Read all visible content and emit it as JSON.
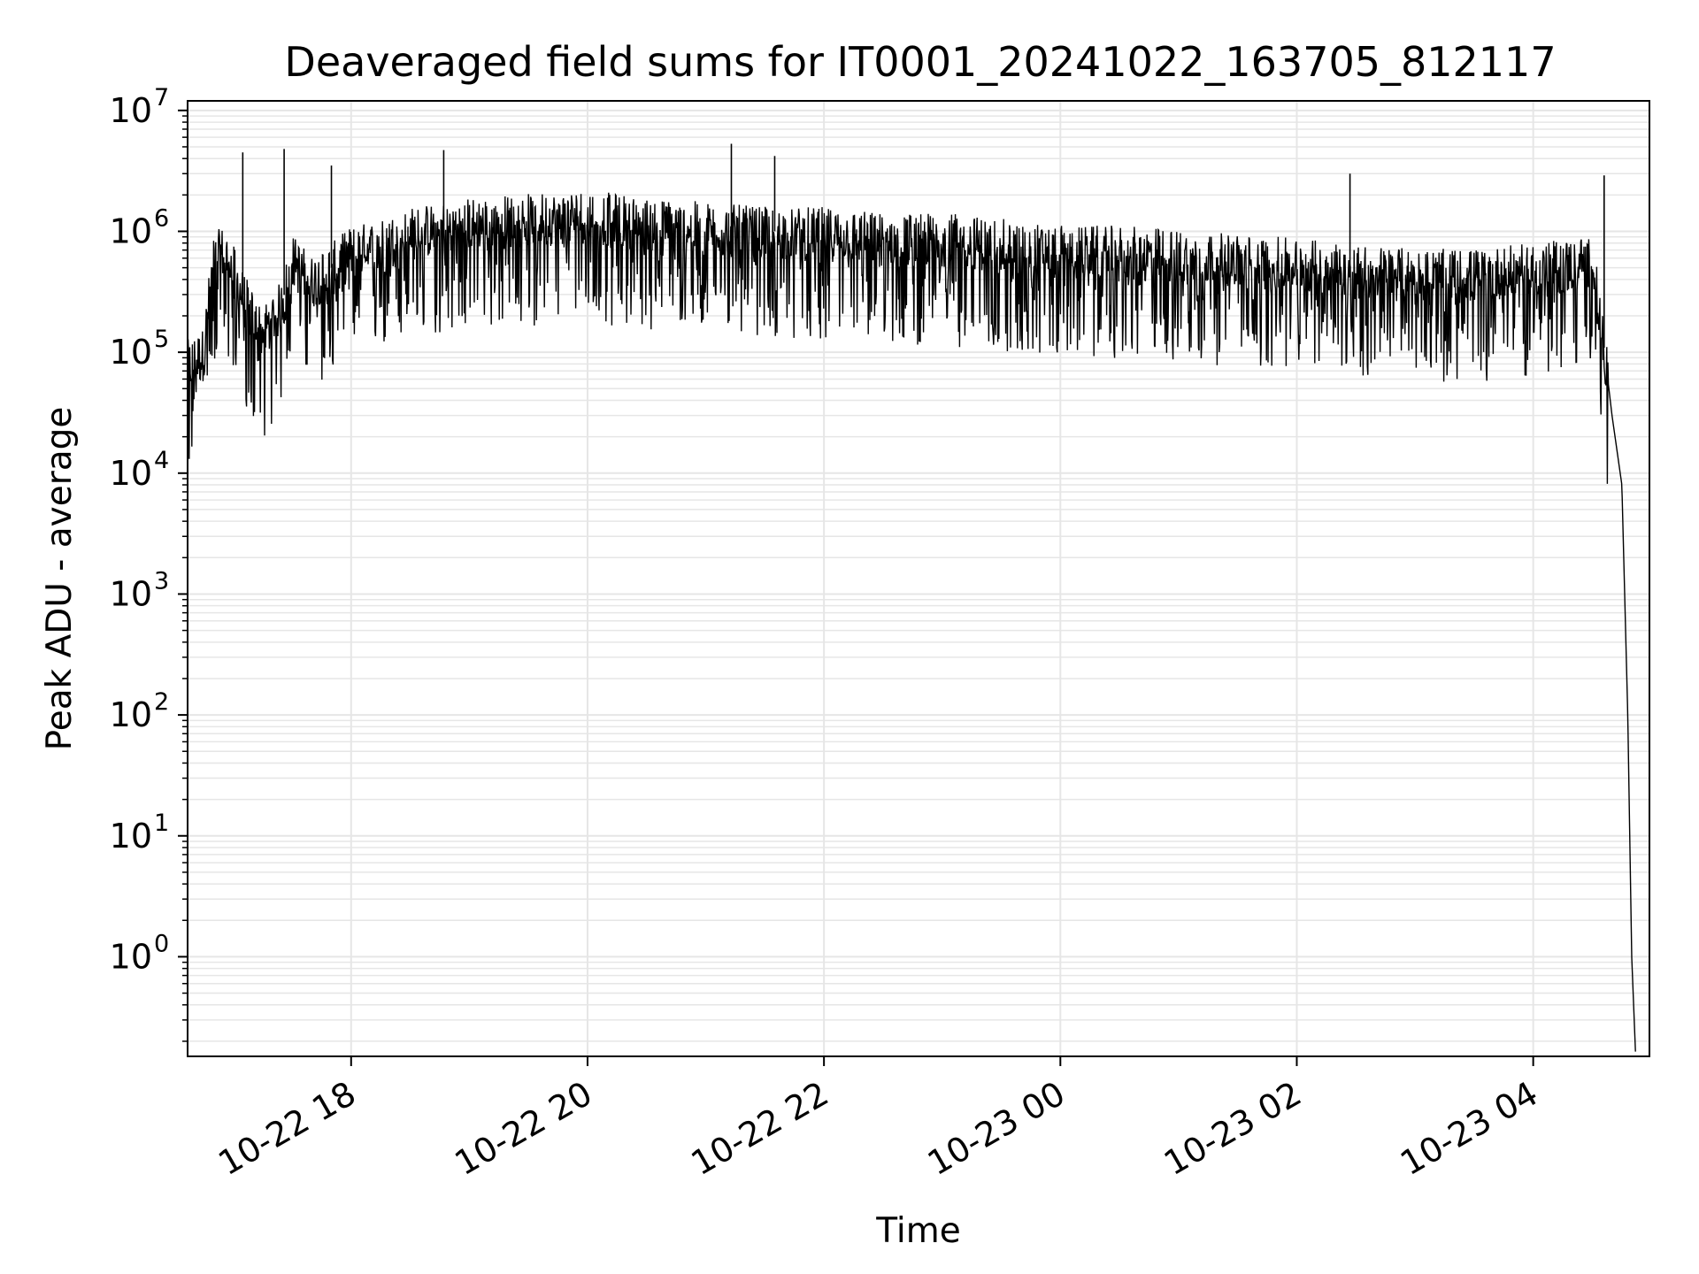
{
  "chart_data": {
    "type": "line",
    "title": "Deaveraged field sums for IT0001_20241022_163705_812117",
    "xlabel": "Time",
    "ylabel": "Peak ADU - average",
    "y_scale": "log",
    "ylim": [
      0.15,
      12000000
    ],
    "xlim": [
      "2024-10-22 16:37",
      "2024-10-23 04:59"
    ],
    "grid": true,
    "line_color": "#000000",
    "grid_color": "#e6e6e6",
    "x_ticks": [
      {
        "value": "2024-10-22 18:00",
        "label": "10-22 18"
      },
      {
        "value": "2024-10-22 20:00",
        "label": "10-22 20"
      },
      {
        "value": "2024-10-22 22:00",
        "label": "10-22 22"
      },
      {
        "value": "2024-10-23 00:00",
        "label": "10-23 00"
      },
      {
        "value": "2024-10-23 02:00",
        "label": "10-23 02"
      },
      {
        "value": "2024-10-23 04:00",
        "label": "10-23 04"
      }
    ],
    "y_ticks": [
      {
        "value": 1,
        "base": "10",
        "exp": "0"
      },
      {
        "value": 10,
        "base": "10",
        "exp": "1"
      },
      {
        "value": 100,
        "base": "10",
        "exp": "2"
      },
      {
        "value": 1000,
        "base": "10",
        "exp": "3"
      },
      {
        "value": 10000,
        "base": "10",
        "exp": "4"
      },
      {
        "value": 100000,
        "base": "10",
        "exp": "5"
      },
      {
        "value": 1000000,
        "base": "10",
        "exp": "6"
      },
      {
        "value": 10000000,
        "base": "10",
        "exp": "7"
      }
    ],
    "series": [
      {
        "x": [
          "2024-10-22 16:37",
          "2024-10-22 16:45",
          "2024-10-22 16:50",
          "2024-10-22 16:55",
          "2024-10-22 17:00",
          "2024-10-22 17:05",
          "2024-10-22 17:10",
          "2024-10-22 17:15",
          "2024-10-22 17:20",
          "2024-10-22 17:25",
          "2024-10-22 17:30",
          "2024-10-22 17:40",
          "2024-10-22 17:50",
          "2024-10-22 18:00",
          "2024-10-22 18:15",
          "2024-10-22 18:30",
          "2024-10-22 18:45",
          "2024-10-22 19:00",
          "2024-10-22 19:30",
          "2024-10-22 20:00",
          "2024-10-22 20:30",
          "2024-10-22 21:00",
          "2024-10-22 21:30",
          "2024-10-22 22:00",
          "2024-10-22 22:30",
          "2024-10-22 23:00",
          "2024-10-22 23:30",
          "2024-10-23 00:00",
          "2024-10-23 00:30",
          "2024-10-23 01:00",
          "2024-10-23 01:30",
          "2024-10-23 02:00",
          "2024-10-23 02:30",
          "2024-10-23 03:00",
          "2024-10-23 03:30",
          "2024-10-23 04:00",
          "2024-10-23 04:20",
          "2024-10-23 04:30",
          "2024-10-23 04:35",
          "2024-10-23 04:40",
          "2024-10-23 04:45",
          "2024-10-23 04:48",
          "2024-10-23 04:50",
          "2024-10-23 04:52"
        ],
        "values": [
          80000,
          100000,
          600000,
          700000,
          500000,
          300000,
          200000,
          150000,
          200000,
          250000,
          600000,
          400000,
          500000,
          700000,
          800000,
          1000000,
          1100000,
          1200000,
          1300000,
          1400000,
          1200000,
          1100000,
          1000000,
          1000000,
          900000,
          900000,
          800000,
          700000,
          700000,
          650000,
          600000,
          550000,
          500000,
          450000,
          450000,
          500000,
          550000,
          600000,
          150000,
          30000,
          8000,
          100,
          1,
          0.15
        ],
        "spikes": [
          {
            "x": "2024-10-22 17:05",
            "y": 4500000
          },
          {
            "x": "2024-10-22 17:26",
            "y": 4800000
          },
          {
            "x": "2024-10-22 17:50",
            "y": 3500000
          },
          {
            "x": "2024-10-22 18:47",
            "y": 4700000
          },
          {
            "x": "2024-10-22 21:13",
            "y": 5300000
          },
          {
            "x": "2024-10-22 21:35",
            "y": 4200000
          },
          {
            "x": "2024-10-23 02:27",
            "y": 3000000
          },
          {
            "x": "2024-10-23 04:36",
            "y": 2900000
          }
        ]
      }
    ]
  }
}
